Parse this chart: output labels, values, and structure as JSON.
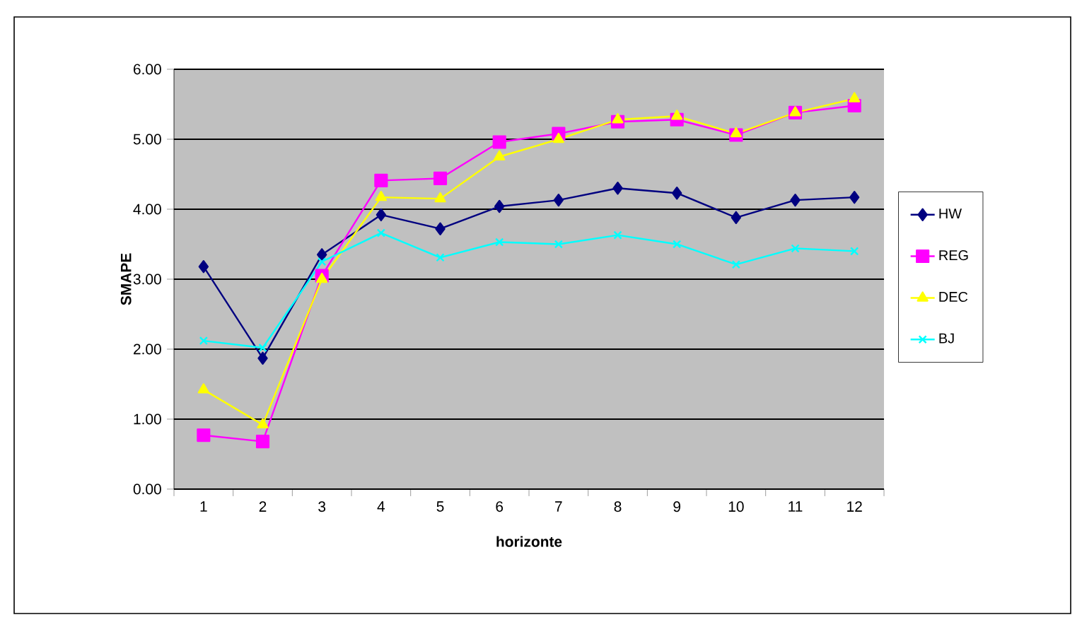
{
  "chart_data": {
    "type": "line",
    "xlabel": "horizonte",
    "ylabel": "SMAPE",
    "categories": [
      "1",
      "2",
      "3",
      "4",
      "5",
      "6",
      "7",
      "8",
      "9",
      "10",
      "11",
      "12"
    ],
    "series": [
      {
        "name": "HW",
        "color": "#000080",
        "marker": "diamond",
        "values": [
          3.18,
          1.87,
          3.35,
          3.92,
          3.72,
          4.04,
          4.13,
          4.3,
          4.23,
          3.88,
          4.13,
          4.17
        ]
      },
      {
        "name": "REG",
        "color": "#ff00ff",
        "marker": "square",
        "values": [
          0.77,
          0.68,
          3.05,
          4.41,
          4.44,
          4.96,
          5.08,
          5.25,
          5.28,
          5.06,
          5.38,
          5.48
        ]
      },
      {
        "name": "DEC",
        "color": "#ffff00",
        "marker": "triangle",
        "values": [
          1.42,
          0.92,
          3.0,
          4.17,
          4.15,
          4.75,
          5.0,
          5.28,
          5.33,
          5.08,
          5.38,
          5.58
        ]
      },
      {
        "name": "BJ",
        "color": "#00ffff",
        "marker": "cross",
        "values": [
          2.12,
          2.02,
          3.25,
          3.66,
          3.31,
          3.53,
          3.5,
          3.63,
          3.5,
          3.21,
          3.44,
          3.4
        ]
      }
    ],
    "ylim": [
      0,
      6
    ],
    "yticks": [
      {
        "value": 0,
        "label": "0.00"
      },
      {
        "value": 1,
        "label": "1.00"
      },
      {
        "value": 2,
        "label": "2.00"
      },
      {
        "value": 3,
        "label": "3.00"
      },
      {
        "value": 4,
        "label": "4.00"
      },
      {
        "value": 5,
        "label": "5.00"
      },
      {
        "value": 6,
        "label": "6.00"
      }
    ],
    "grid": "y",
    "legend": "right",
    "line_style": "solid"
  }
}
